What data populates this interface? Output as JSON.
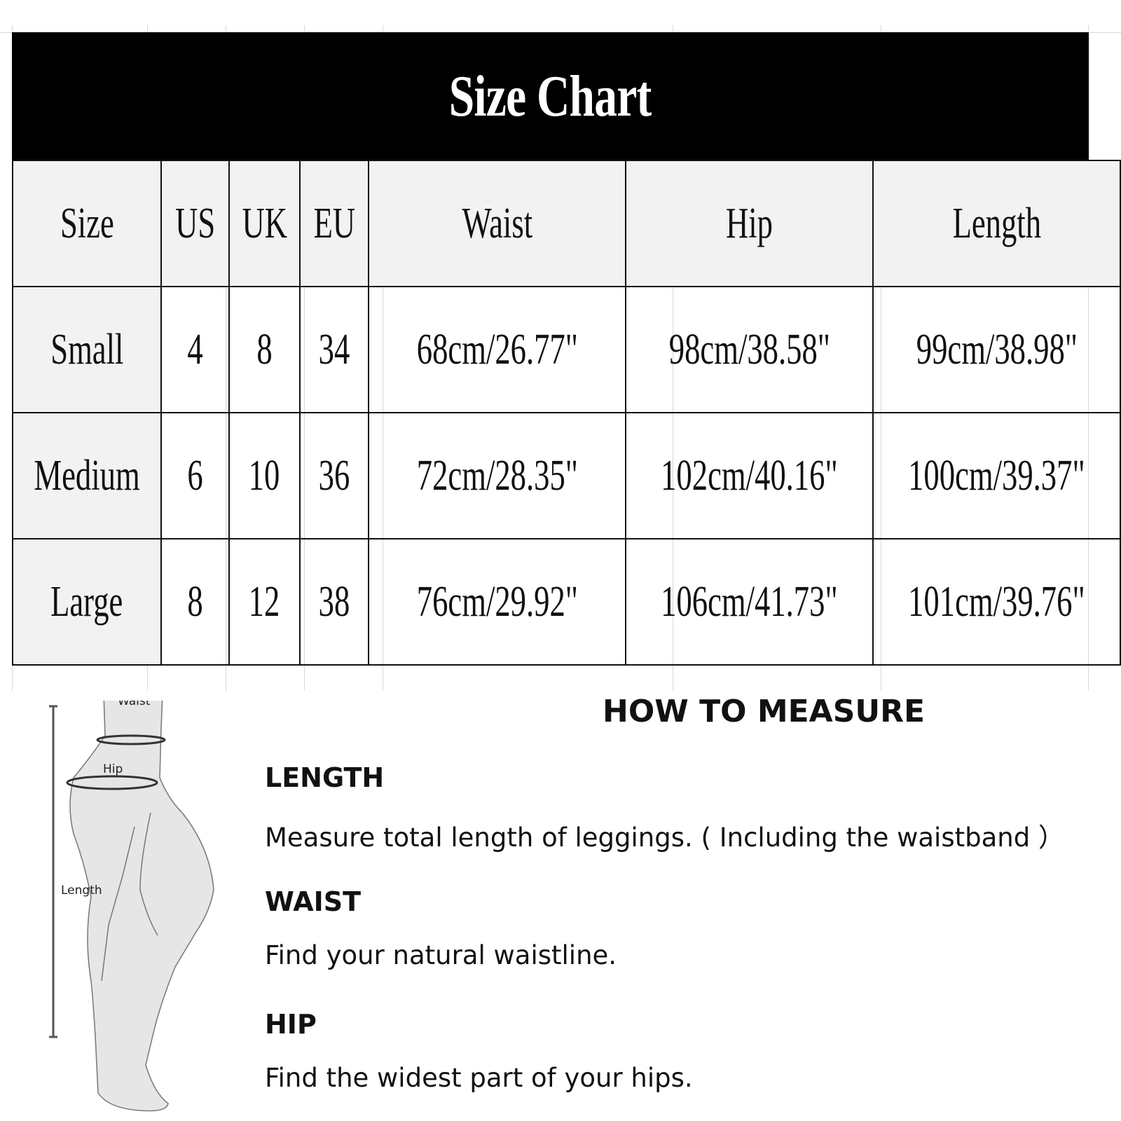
{
  "title": "Size Chart",
  "table": {
    "headers": [
      "Size",
      "US",
      "UK",
      "EU",
      "Waist",
      "Hip",
      "Length"
    ],
    "rows": [
      [
        "Small",
        "4",
        "8",
        "34",
        "68cm/26.77\"",
        "98cm/38.58\"",
        "99cm/38.98\""
      ],
      [
        "Medium",
        "6",
        "10",
        "36",
        "72cm/28.35\"",
        "102cm/40.16\"",
        "100cm/39.37\""
      ],
      [
        "Large",
        "8",
        "12",
        "38",
        "76cm/29.92\"",
        "106cm/41.73\"",
        "101cm/39.76\""
      ]
    ]
  },
  "figure": {
    "waist_label": "Waist",
    "hip_label": "Hip",
    "length_label": "Length"
  },
  "how_to_measure": {
    "title": "HOW TO MEASURE",
    "sections": [
      {
        "heading": "LENGTH",
        "text": "Measure total length of leggings. ( Including the waistband ）"
      },
      {
        "heading": "WAIST",
        "text": "Find your natural waistline."
      },
      {
        "heading": "HIP",
        "text": "Find the widest part of your hips."
      }
    ]
  }
}
